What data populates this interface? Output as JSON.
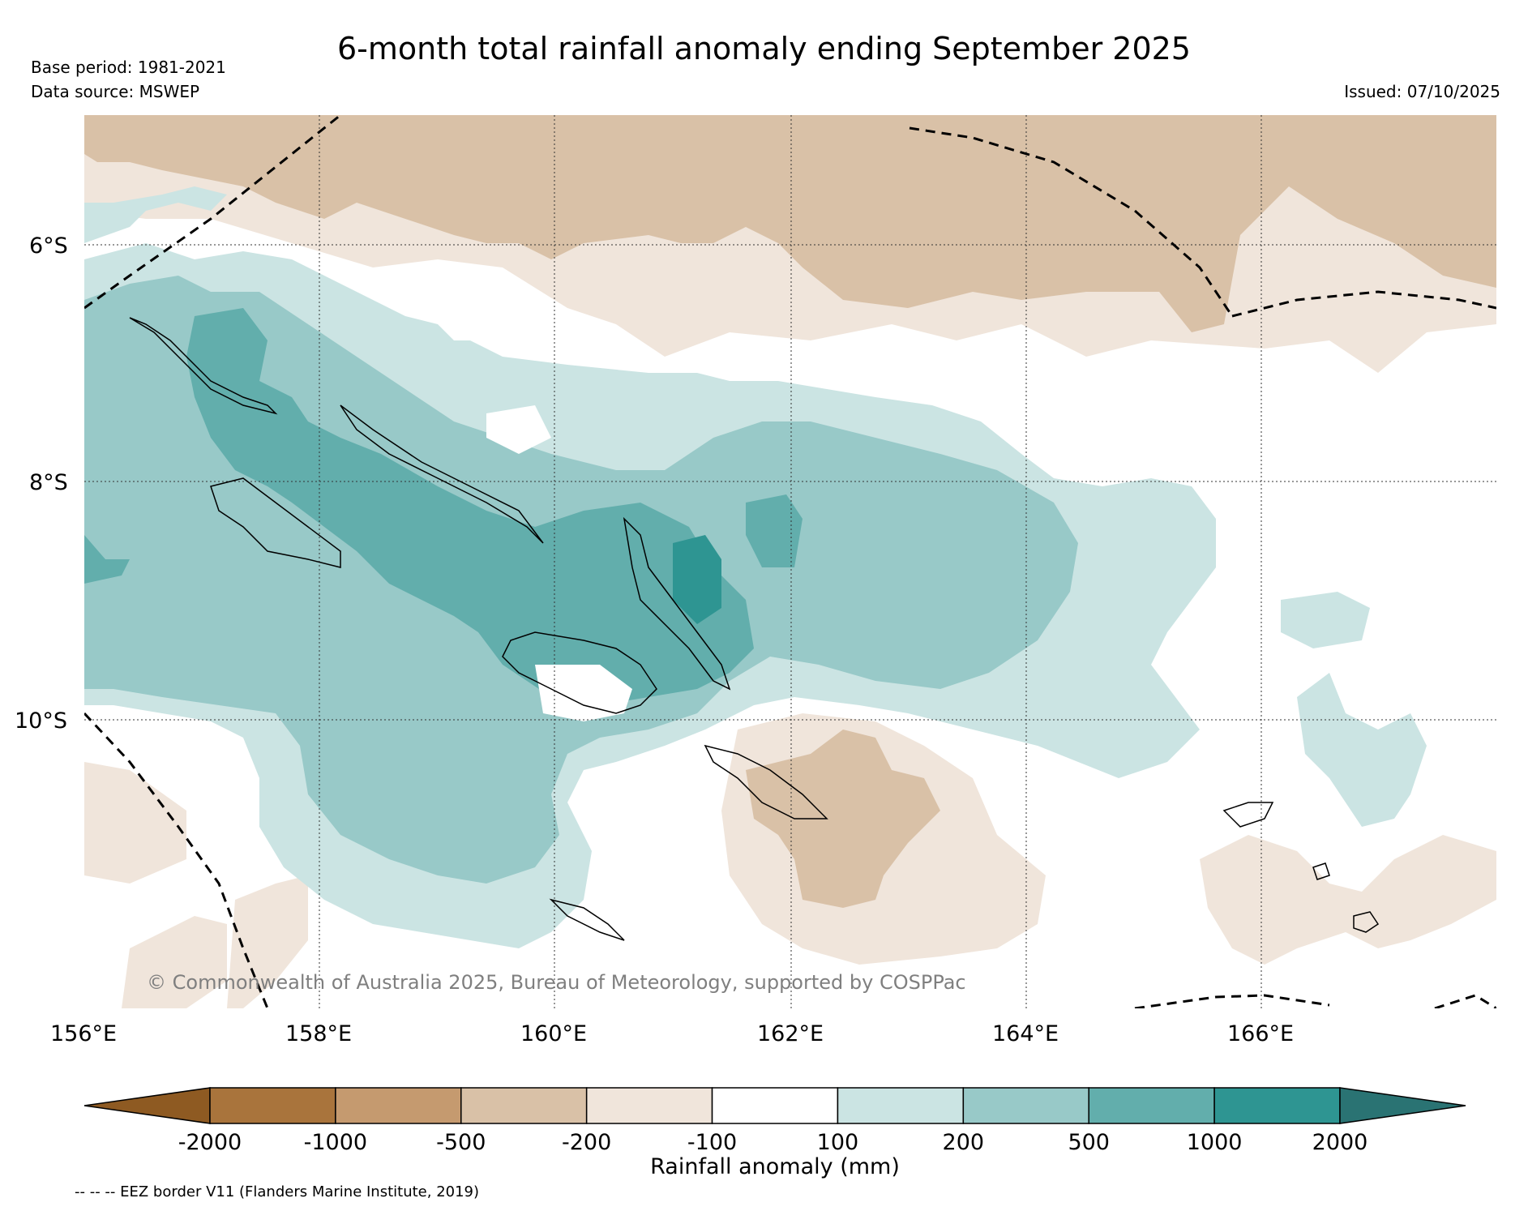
{
  "title": "6-month total rainfall anomaly ending September 2025",
  "base_period": "Base period: 1981-2021",
  "data_source": "Data source: MSWEP",
  "issued": "Issued: 07/10/2025",
  "copyright": "© Commonwealth of Australia 2025, Bureau of Meteorology, supported by COSPPac",
  "eez_note": "-- -- -- EEZ border V11 (Flanders Marine Institute, 2019)",
  "map": {
    "lat_labels": [
      {
        "value": -6,
        "text": "6°S"
      },
      {
        "value": -8,
        "text": "8°S"
      },
      {
        "value": -10,
        "text": "10°S"
      }
    ],
    "lon_labels": [
      {
        "value": 156,
        "text": "156°E"
      },
      {
        "value": 158,
        "text": "158°E"
      },
      {
        "value": 160,
        "text": "160°E"
      },
      {
        "value": 162,
        "text": "162°E"
      },
      {
        "value": 164,
        "text": "164°E"
      },
      {
        "value": 166,
        "text": "166°E"
      }
    ],
    "extent": {
      "lon_min": 156,
      "lon_max": 168,
      "lat_min": -12.4,
      "lat_max": -4.9
    }
  },
  "colorbar": {
    "title": "Rainfall anomaly (mm)",
    "ticks": [
      "-2000",
      "-1000",
      "-500",
      "-200",
      "-100",
      "100",
      "200",
      "500",
      "1000",
      "2000"
    ],
    "colors": [
      "#8e5a22",
      "#a9743c",
      "#c59a6f",
      "#d9c1a7",
      "#f0e5db",
      "#ffffff",
      "#cbe4e3",
      "#98c9c8",
      "#62aeac",
      "#2e9592",
      "#2a7373"
    ]
  },
  "colors": {
    "dry_strong": "#d9c1a7",
    "dry_light": "#f0e5db",
    "wet_light": "#cbe4e3",
    "wet_mid": "#98c9c8",
    "wet_strong": "#62aeac",
    "wet_max": "#2e9592"
  }
}
